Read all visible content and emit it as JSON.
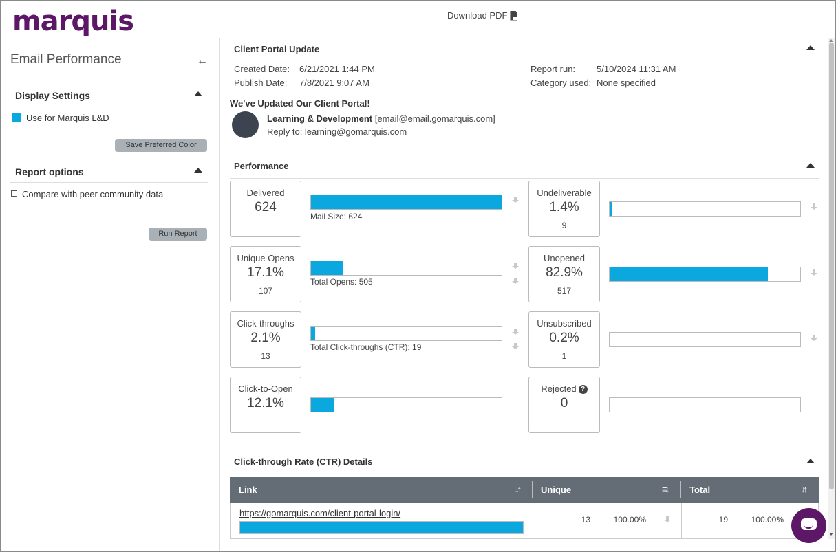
{
  "header": {
    "logo": "marquis",
    "download_label": "Download PDF",
    "download_icon": "pdf-icon"
  },
  "sidebar": {
    "title": "Email Performance",
    "back_icon": "arrow-left-icon",
    "display_settings": {
      "heading": "Display Settings",
      "color_label": "Use for Marquis L&D",
      "color": "#0ba7df",
      "save_button": "Save Preferred Color"
    },
    "report_options": {
      "heading": "Report options",
      "compare_label": "Compare with peer community data",
      "compare_checked": false,
      "run_button": "Run Report"
    }
  },
  "campaign": {
    "heading": "Client Portal Update",
    "created_label": "Created Date:",
    "created_value": "6/21/2021 1:44 PM",
    "publish_label": "Publish Date:",
    "publish_value": "7/8/2021 9:07 AM",
    "report_run_label": "Report run:",
    "report_run_value": "5/10/2024 11:31 AM",
    "category_label": "Category used:",
    "category_value": "None specified",
    "subject": "We've Updated Our Client Portal!",
    "sender_name": "Learning & Development",
    "sender_email": "[email@email.gomarquis.com]",
    "reply_to": "Reply to: learning@gomarquis.com"
  },
  "performance": {
    "heading": "Performance",
    "delivered": {
      "label": "Delivered",
      "value": "624",
      "bar_fraction": 1.0,
      "caption": "Mail Size: 624"
    },
    "unique_opens": {
      "label": "Unique Opens",
      "value": "17.1%",
      "count": "107",
      "bar_fraction": 0.171,
      "caption": "Total Opens: 505"
    },
    "click_throughs": {
      "label": "Click-throughs",
      "value": "2.1%",
      "count": "13",
      "bar_fraction": 0.021,
      "caption": "Total Click-throughs (CTR): 19"
    },
    "click_to_open": {
      "label": "Click-to-Open",
      "value": "12.1%",
      "bar_fraction": 0.121
    },
    "undeliverable": {
      "label": "Undeliverable",
      "value": "1.4%",
      "count": "9",
      "bar_fraction": 0.014
    },
    "unopened": {
      "label": "Unopened",
      "value": "82.9%",
      "count": "517",
      "bar_fraction": 0.829
    },
    "unsubscribed": {
      "label": "Unsubscribed",
      "value": "0.2%",
      "count": "1",
      "bar_fraction": 0.002
    },
    "rejected": {
      "label": "Rejected",
      "value": "0",
      "bar_fraction": 0.0,
      "help_icon": "question-circle-icon"
    }
  },
  "ctr": {
    "heading": "Click-through Rate (CTR) Details",
    "columns": [
      "Link",
      "Unique",
      "Total"
    ],
    "rows": [
      {
        "link": "https://gomarquis.com/client-portal-login/",
        "bar_fraction": 1.0,
        "unique": "13",
        "unique_pct": "100.00%",
        "total": "19",
        "total_pct": "100.00%"
      }
    ]
  },
  "chat_icon": "chat-bubble-icon"
}
